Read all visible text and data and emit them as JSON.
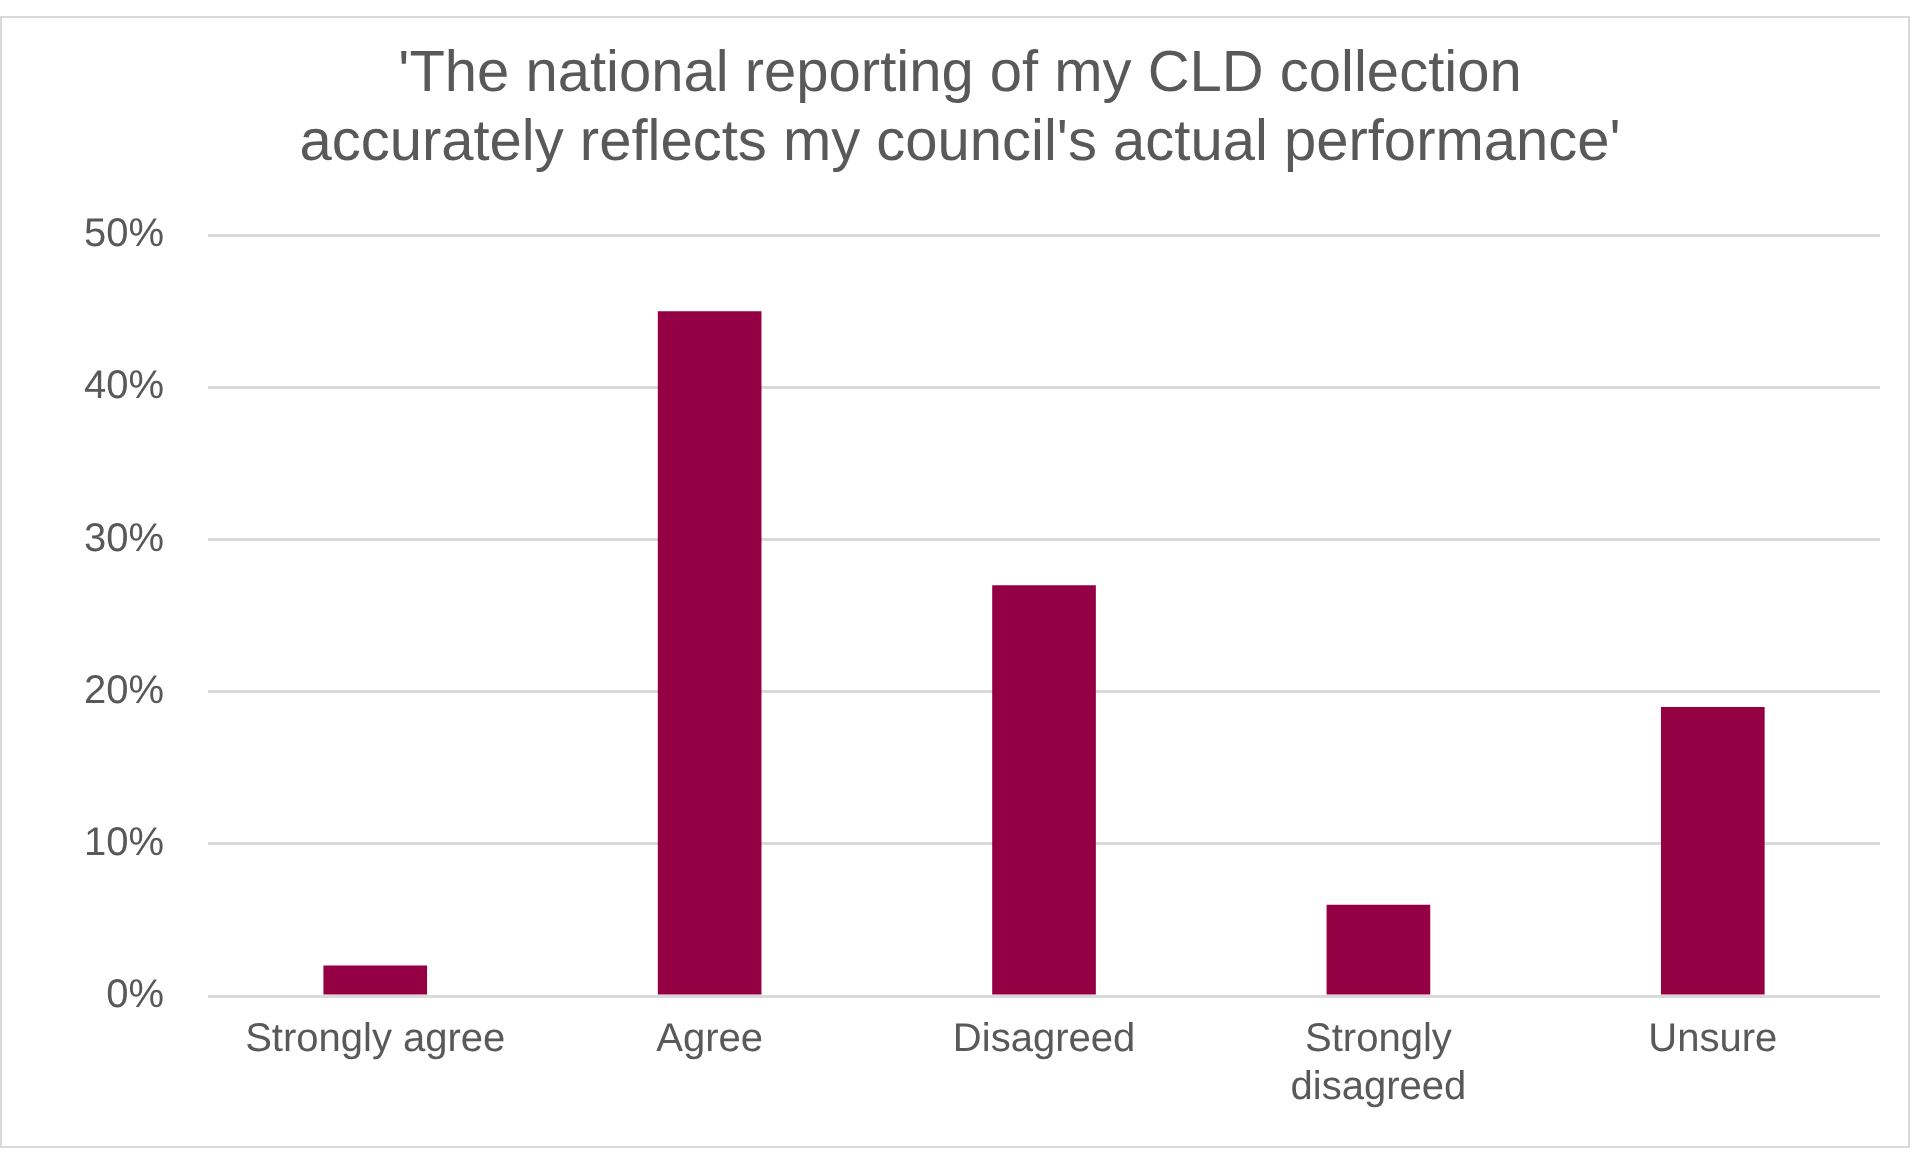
{
  "chart_data": {
    "type": "bar",
    "title": "'The national reporting of my CLD collection accurately reflects my council's actual performance'",
    "categories": [
      "Strongly agree",
      "Agree",
      "Disagreed",
      "Strongly disagreed",
      "Unsure"
    ],
    "values": [
      2,
      45,
      27,
      6,
      19
    ],
    "color": "#950045",
    "ylim": [
      0,
      50
    ],
    "yticks": [
      {
        "value": 0,
        "label": "0%"
      },
      {
        "value": 10,
        "label": "10%"
      },
      {
        "value": 20,
        "label": "20%"
      },
      {
        "value": 30,
        "label": "30%"
      },
      {
        "value": 40,
        "label": "40%"
      },
      {
        "value": 50,
        "label": "50%"
      }
    ],
    "grid": "y",
    "legend": false
  }
}
